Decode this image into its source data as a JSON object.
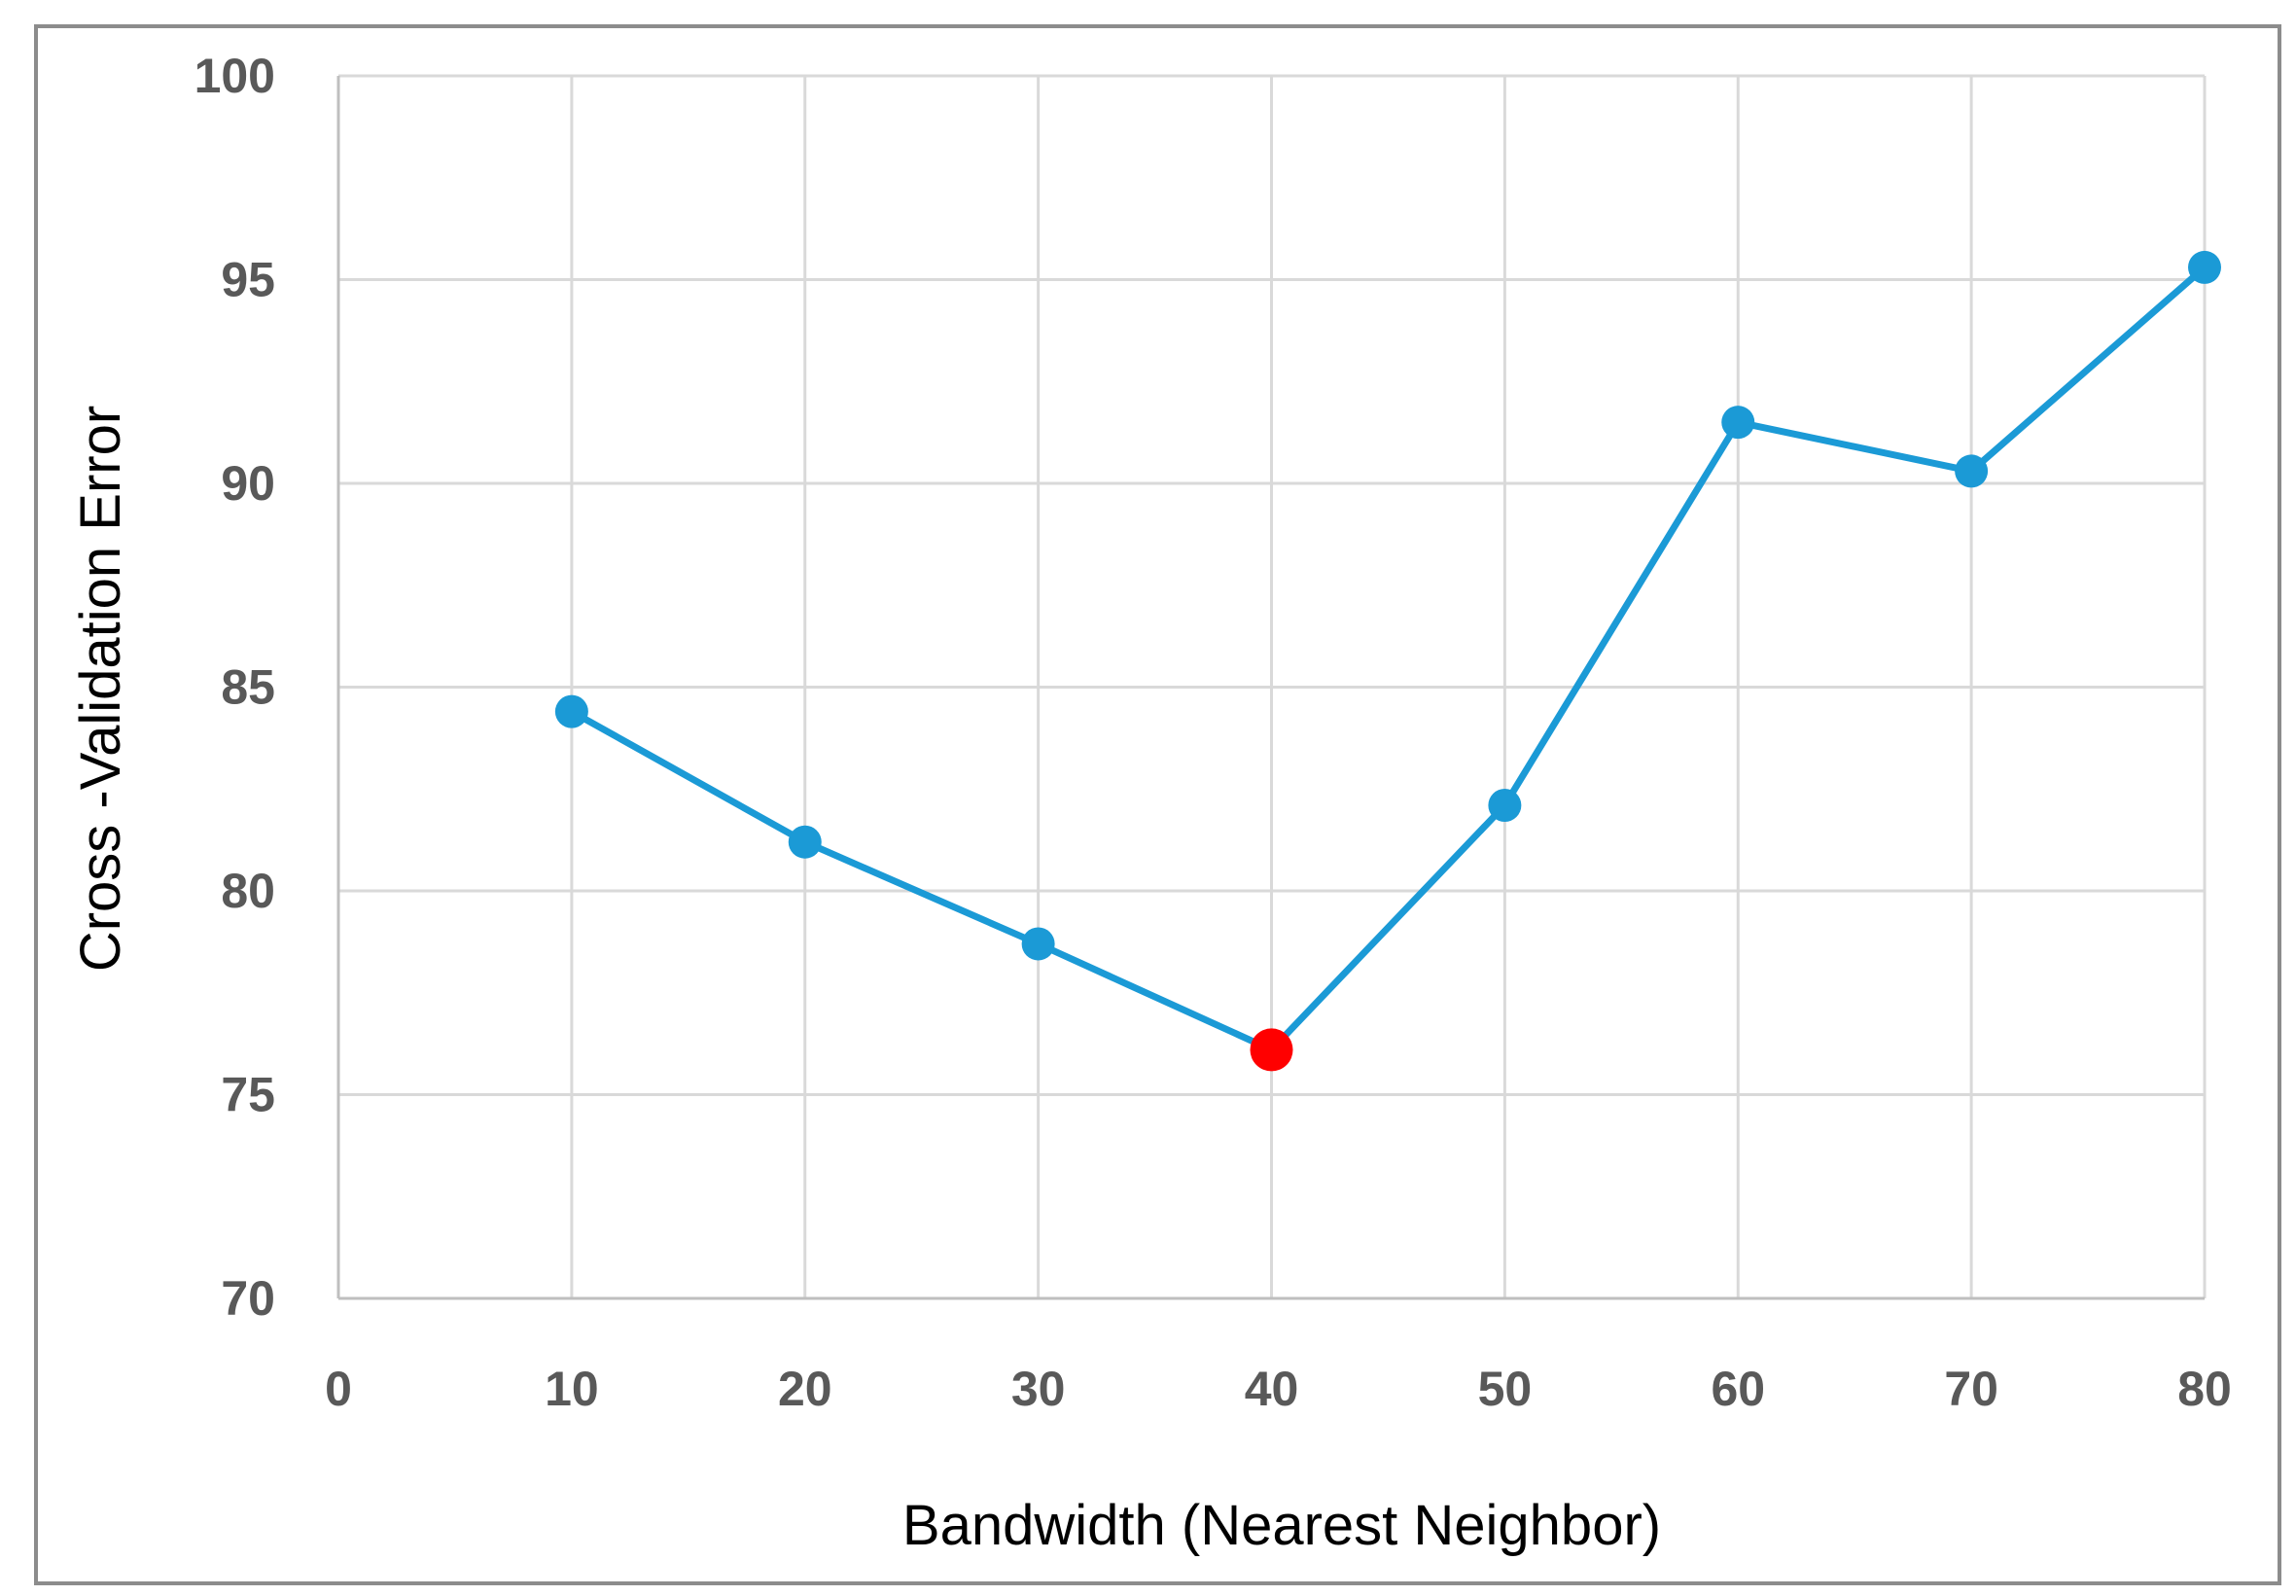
{
  "chart_data": {
    "type": "line",
    "title": "",
    "xlabel": "Bandwidth (Nearest Neighbor)",
    "ylabel": "Cross -Validation Error",
    "xlim": [
      0,
      80
    ],
    "ylim": [
      70,
      100
    ],
    "x_ticks": [
      "0",
      "10",
      "20",
      "30",
      "40",
      "50",
      "60",
      "70",
      "80"
    ],
    "y_ticks": [
      "70",
      "75",
      "80",
      "85",
      "90",
      "95",
      "100"
    ],
    "grid": true,
    "legend": "none",
    "series": [
      {
        "x": [
          10,
          20,
          30,
          40,
          50,
          60,
          70,
          80
        ],
        "y": [
          84.4,
          81.2,
          78.7,
          76.1,
          82.1,
          91.5,
          90.3,
          95.3
        ],
        "color": "#1b9ad6"
      }
    ],
    "highlight": {
      "x": 40,
      "y": 76.1,
      "color": "#ff0000"
    }
  }
}
